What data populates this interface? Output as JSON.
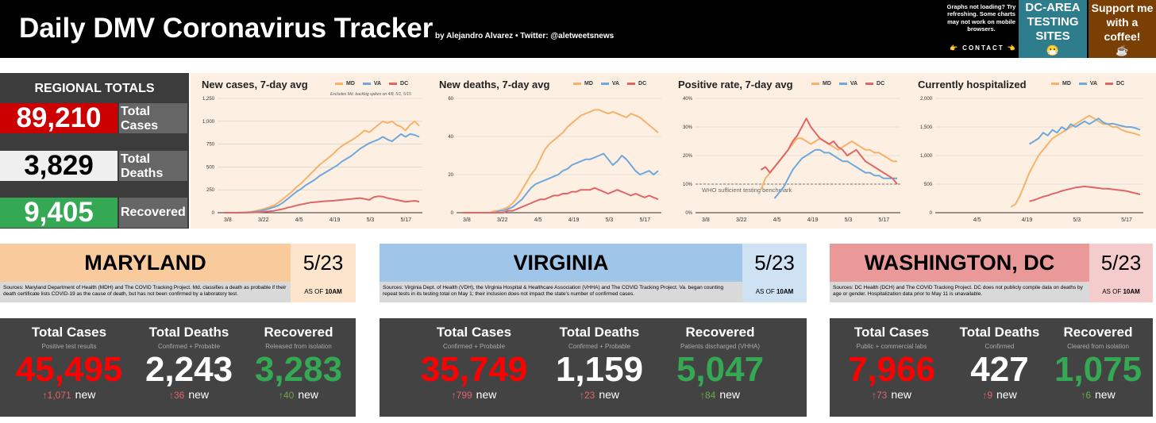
{
  "header": {
    "title": "Daily DMV Coronavirus Tracker",
    "byline": "by Alejandro Alvarez • Twitter: @aletweetsnews",
    "notice": "Graphs not loading? Try refreshing. Some charts may not work on mobile browsers.",
    "contact": "👉 CONTACT 👈",
    "testing_label": "DC-AREA TESTING SITES",
    "testing_emoji": "😷",
    "coffee_label": "Support me with a coffee!",
    "coffee_emoji": "☕"
  },
  "regional": {
    "title": "REGIONAL TOTALS",
    "cases_value": "89,210",
    "cases_label": "Total Cases",
    "deaths_value": "3,829",
    "deaths_label": "Total Deaths",
    "recovered_value": "9,405",
    "recovered_label": "Recovered"
  },
  "colors": {
    "MD": "#f6b26b",
    "VA": "#6fa8dc",
    "DC": "#e06666"
  },
  "chart_data": [
    {
      "type": "line",
      "title": "New cases, 7-day avg",
      "annotation": "Excludes Md. backlog spikes on 4/8, 5/1, 5/15",
      "x_ticks": [
        "3/8",
        "3/22",
        "4/5",
        "4/19",
        "5/3",
        "5/17"
      ],
      "y_ticks": [
        "0",
        "250",
        "500",
        "750",
        "1,000",
        "1,250"
      ],
      "ylim": [
        0,
        1250
      ],
      "series": [
        {
          "name": "MD",
          "values": [
            0,
            0,
            0,
            0,
            2,
            5,
            10,
            20,
            30,
            45,
            60,
            80,
            110,
            150,
            190,
            230,
            280,
            320,
            370,
            420,
            470,
            520,
            560,
            600,
            640,
            690,
            730,
            760,
            790,
            820,
            860,
            900,
            880,
            920,
            960,
            1000,
            980,
            1000,
            960,
            940,
            900,
            960,
            1000,
            950
          ]
        },
        {
          "name": "VA",
          "values": [
            0,
            0,
            0,
            0,
            1,
            3,
            6,
            12,
            20,
            30,
            45,
            60,
            80,
            110,
            150,
            190,
            230,
            260,
            300,
            330,
            360,
            400,
            430,
            460,
            490,
            520,
            560,
            590,
            620,
            660,
            700,
            730,
            760,
            780,
            800,
            830,
            800,
            780,
            820,
            860,
            830,
            860,
            850,
            830
          ]
        },
        {
          "name": "DC",
          "values": [
            0,
            0,
            0,
            0,
            0,
            1,
            2,
            4,
            6,
            10,
            15,
            20,
            30,
            40,
            55,
            65,
            80,
            90,
            100,
            110,
            115,
            120,
            125,
            128,
            130,
            135,
            140,
            145,
            150,
            155,
            160,
            150,
            140,
            170,
            180,
            175,
            160,
            150,
            140,
            130,
            120,
            125,
            130,
            120
          ]
        }
      ]
    },
    {
      "type": "line",
      "title": "New deaths, 7-day avg",
      "x_ticks": [
        "3/8",
        "3/22",
        "4/5",
        "4/19",
        "5/3",
        "5/17"
      ],
      "y_ticks": [
        "0",
        "20",
        "40",
        "60"
      ],
      "ylim": [
        0,
        60
      ],
      "series": [
        {
          "name": "MD",
          "values": [
            0,
            0,
            0,
            0,
            0,
            0,
            0,
            1,
            1,
            2,
            3,
            5,
            8,
            12,
            16,
            20,
            23,
            28,
            33,
            36,
            38,
            40,
            42,
            45,
            47,
            49,
            51,
            52,
            53,
            54,
            54,
            53,
            52,
            53,
            52,
            51,
            50,
            52,
            51,
            50,
            48,
            46,
            44,
            42
          ]
        },
        {
          "name": "VA",
          "values": [
            0,
            0,
            0,
            0,
            0,
            0,
            0,
            0,
            1,
            1,
            2,
            3,
            5,
            7,
            10,
            13,
            15,
            16,
            17,
            18,
            19,
            20,
            22,
            23,
            25,
            26,
            27,
            28,
            28,
            29,
            30,
            31,
            28,
            25,
            27,
            30,
            28,
            25,
            22,
            20,
            21,
            22,
            20,
            22
          ]
        },
        {
          "name": "DC",
          "values": [
            0,
            0,
            0,
            0,
            0,
            0,
            0,
            0,
            0,
            0,
            1,
            1,
            2,
            3,
            4,
            5,
            6,
            7,
            7,
            8,
            9,
            9,
            10,
            10,
            11,
            11,
            12,
            12,
            12,
            13,
            12,
            11,
            10,
            11,
            12,
            11,
            10,
            9,
            10,
            9,
            8,
            9,
            8,
            7
          ]
        }
      ]
    },
    {
      "type": "line",
      "title": "Positive rate, 7-day avg",
      "reference_label": "WHO sufficient testing benchmark",
      "reference_value": 10,
      "x_ticks": [
        "3/8",
        "3/22",
        "4/5",
        "4/19",
        "5/3",
        "5/17"
      ],
      "y_ticks": [
        "0%",
        "10%",
        "20%",
        "30%",
        "40%"
      ],
      "ylim": [
        0,
        40
      ],
      "series": [
        {
          "name": "MD",
          "values": [
            null,
            null,
            null,
            null,
            null,
            null,
            null,
            null,
            null,
            null,
            null,
            null,
            null,
            8,
            12,
            14,
            16,
            18,
            20,
            22,
            24,
            26,
            26,
            25,
            24,
            25,
            26,
            25,
            24,
            23,
            22,
            23,
            24,
            25,
            24,
            23,
            22,
            22,
            21,
            21,
            20,
            19,
            18,
            18
          ]
        },
        {
          "name": "VA",
          "values": [
            null,
            null,
            null,
            null,
            null,
            null,
            null,
            null,
            null,
            null,
            null,
            null,
            null,
            null,
            null,
            null,
            5,
            7,
            9,
            12,
            15,
            17,
            19,
            20,
            21,
            22,
            22,
            21,
            21,
            20,
            19,
            18,
            18,
            17,
            16,
            15,
            14,
            14,
            13,
            13,
            12,
            12,
            12,
            12
          ]
        },
        {
          "name": "DC",
          "values": [
            null,
            null,
            null,
            null,
            null,
            null,
            null,
            null,
            null,
            null,
            null,
            null,
            null,
            15,
            16,
            14,
            16,
            18,
            20,
            22,
            25,
            27,
            30,
            33,
            30,
            28,
            26,
            25,
            24,
            25,
            23,
            22,
            20,
            21,
            22,
            20,
            18,
            17,
            16,
            15,
            14,
            13,
            12,
            10
          ]
        }
      ]
    },
    {
      "type": "line",
      "title": "Currently hospitalized",
      "x_ticks": [
        "4/5",
        "4/19",
        "5/3",
        "5/17"
      ],
      "y_ticks": [
        "0",
        "500",
        "1,000",
        "1,500",
        "2,000"
      ],
      "ylim": [
        0,
        2000
      ],
      "series": [
        {
          "name": "MD",
          "values": [
            null,
            null,
            null,
            null,
            null,
            null,
            null,
            null,
            null,
            null,
            null,
            null,
            null,
            null,
            null,
            100,
            150,
            300,
            500,
            700,
            850,
            1000,
            1100,
            1200,
            1300,
            1350,
            1400,
            1450,
            1500,
            1550,
            1600,
            1650,
            1700,
            1650,
            1600,
            1550,
            1550,
            1500,
            1500,
            1450,
            1420,
            1400,
            1380,
            1350
          ]
        },
        {
          "name": "VA",
          "values": [
            null,
            null,
            null,
            null,
            null,
            null,
            null,
            null,
            null,
            null,
            null,
            null,
            null,
            null,
            null,
            null,
            null,
            null,
            null,
            1200,
            1250,
            1300,
            1400,
            1350,
            1450,
            1400,
            1500,
            1450,
            1550,
            1500,
            1550,
            1600,
            1550,
            1600,
            1650,
            1580,
            1550,
            1560,
            1540,
            1520,
            1500,
            1500,
            1480,
            1450
          ]
        },
        {
          "name": "DC",
          "values": [
            null,
            null,
            null,
            null,
            null,
            null,
            null,
            null,
            null,
            null,
            null,
            null,
            null,
            null,
            null,
            null,
            null,
            null,
            null,
            200,
            220,
            250,
            280,
            300,
            330,
            350,
            380,
            400,
            420,
            440,
            450,
            460,
            450,
            440,
            430,
            420,
            420,
            410,
            400,
            390,
            380,
            360,
            340,
            320
          ]
        }
      ]
    }
  ],
  "states": [
    {
      "name": "MARYLAND",
      "date": "5/23",
      "asof_prefix": "AS OF",
      "asof_time": "10AM",
      "source": "Sources: Maryland Department of Health (MDH) and The COVID Tracking Project. Md. classifies a death as probable if their death certificate lists COVID-19 as the cause of death, but has not been confirmed by a laboratory test.",
      "cases_label": "Total Cases",
      "cases_sub": "Positive test results",
      "cases_value": "45,495",
      "cases_new": "↑1,071",
      "new_word": "new",
      "deaths_label": "Total Deaths",
      "deaths_sub": "Confirmed + Probable",
      "deaths_value": "2,243",
      "deaths_new": "↑36",
      "recovered_label": "Recovered",
      "recovered_sub": "Released from isolation",
      "recovered_value": "3,283",
      "recovered_new": "↑40"
    },
    {
      "name": "VIRGINIA",
      "date": "5/23",
      "asof_prefix": "AS OF",
      "asof_time": "10AM",
      "source": "Sources: Virginia Dept. of Health (VDH), the Virginia Hospital & Healthcare Association (VHHA) and The COVID Tracking Project. Va. began counting repeat tests in its testing total on May 1; their inclusion does not impact the state's number of confirmed cases.",
      "cases_label": "Total Cases",
      "cases_sub": "Confirmed + Probable",
      "cases_value": "35,749",
      "cases_new": "↑799",
      "new_word": "new",
      "deaths_label": "Total Deaths",
      "deaths_sub": "Confirmed + Probable",
      "deaths_value": "1,159",
      "deaths_new": "↑23",
      "recovered_label": "Recovered",
      "recovered_sub": "Patients discharged (VHHA)",
      "recovered_value": "5,047",
      "recovered_new": "↑84"
    },
    {
      "name": "WASHINGTON, DC",
      "date": "5/23",
      "asof_prefix": "AS OF",
      "asof_time": "10AM",
      "source": "Sources: DC Health (DCH) and The COVID Tracking Project. DC does not publicly compile data on deaths by age or gender. Hospitalization data prior to May 11 is unavailable.",
      "cases_label": "Total Cases",
      "cases_sub": "Public + commercial labs",
      "cases_value": "7,966",
      "cases_new": "↑73",
      "new_word": "new",
      "deaths_label": "Total Deaths",
      "deaths_sub": "Confirmed",
      "deaths_value": "427",
      "deaths_new": "↑9",
      "recovered_label": "Recovered",
      "recovered_sub": "Cleared from isolation",
      "recovered_value": "1,075",
      "recovered_new": "↑6"
    }
  ]
}
